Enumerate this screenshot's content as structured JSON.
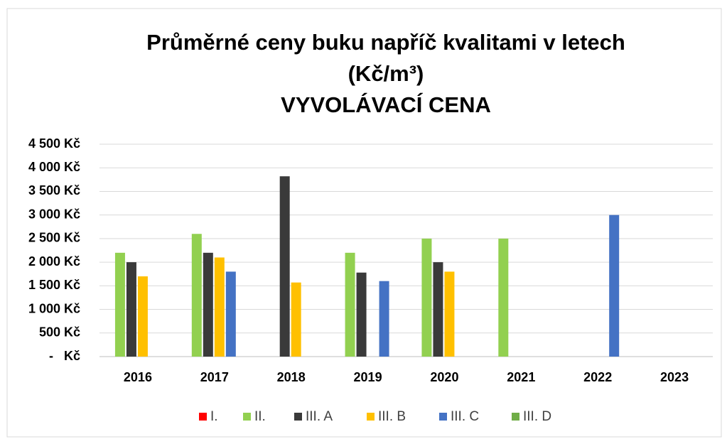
{
  "chart_data": {
    "type": "bar",
    "title": [
      "Průměrné ceny buku napříč kvalitami v letech",
      "(Kč/m³)",
      "VYVOLÁVACÍ CENA"
    ],
    "categories": [
      "2016",
      "2017",
      "2018",
      "2019",
      "2020",
      "2021",
      "2022",
      "2023"
    ],
    "series": [
      {
        "name": "I.",
        "color": "#ff0000",
        "values": [
          null,
          null,
          null,
          null,
          null,
          null,
          null,
          null
        ]
      },
      {
        "name": "II.",
        "color": "#92d050",
        "values": [
          2200,
          2600,
          null,
          2200,
          2500,
          2500,
          null,
          null
        ]
      },
      {
        "name": "III. A",
        "color": "#3a3a3a",
        "values": [
          2000,
          2200,
          3820,
          1780,
          2000,
          null,
          null,
          null
        ]
      },
      {
        "name": "III. B",
        "color": "#ffc000",
        "values": [
          1700,
          2100,
          1570,
          null,
          1800,
          null,
          null,
          null
        ]
      },
      {
        "name": "III. C",
        "color": "#4472c4",
        "values": [
          null,
          1800,
          null,
          1600,
          null,
          null,
          3000,
          null
        ]
      },
      {
        "name": "III. D",
        "color": "#70ad47",
        "values": [
          null,
          null,
          null,
          null,
          null,
          null,
          null,
          null
        ]
      }
    ],
    "ylim": [
      0,
      4500
    ],
    "yticks": [
      {
        "value": 0,
        "label": "-   Kč"
      },
      {
        "value": 500,
        "label": "500 Kč"
      },
      {
        "value": 1000,
        "label": "1 000 Kč"
      },
      {
        "value": 1500,
        "label": "1 500 Kč"
      },
      {
        "value": 2000,
        "label": "2 000 Kč"
      },
      {
        "value": 2500,
        "label": "2 500 Kč"
      },
      {
        "value": 3000,
        "label": "3 000 Kč"
      },
      {
        "value": 3500,
        "label": "3 500 Kč"
      },
      {
        "value": 4000,
        "label": "4 000 Kč"
      },
      {
        "value": 4500,
        "label": "4 500 Kč"
      }
    ],
    "grid": true,
    "legend": "bottom"
  }
}
